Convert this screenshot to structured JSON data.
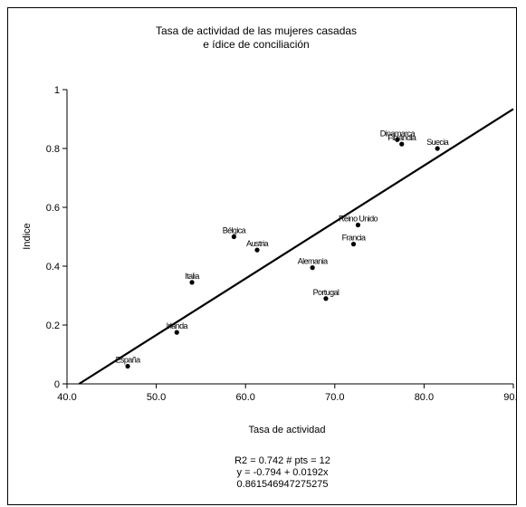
{
  "chart_data": {
    "type": "scatter",
    "title": [
      "Tasa de actividad de las mujeres casadas",
      "e ídice de conciliación"
    ],
    "xlabel": "Tasa de actividad",
    "ylabel": "Indice",
    "xlim": [
      40,
      90
    ],
    "ylim": [
      0,
      1
    ],
    "xticks": [
      40,
      50,
      60,
      70,
      80,
      90
    ],
    "xtick_labels": [
      "40.0",
      "50.0",
      "60.0",
      "70.0",
      "80.0",
      "90.0"
    ],
    "yticks": [
      0,
      0.2,
      0.4,
      0.6,
      0.8,
      1
    ],
    "ytick_labels": [
      "0",
      "0.2",
      "0.4",
      "0.6",
      "0.8",
      "1"
    ],
    "grid": false,
    "points": [
      {
        "label": "España",
        "x": 46.8,
        "y": 0.06
      },
      {
        "label": "Irlanda",
        "x": 52.3,
        "y": 0.175
      },
      {
        "label": "Italia",
        "x": 54.0,
        "y": 0.345
      },
      {
        "label": "Bélgica",
        "x": 58.7,
        "y": 0.5
      },
      {
        "label": "Austria",
        "x": 61.3,
        "y": 0.455
      },
      {
        "label": "Alemania",
        "x": 67.5,
        "y": 0.395
      },
      {
        "label": "Portugal",
        "x": 69.0,
        "y": 0.29
      },
      {
        "label": "Reino Unido",
        "x": 72.6,
        "y": 0.54
      },
      {
        "label": "Francia",
        "x": 72.1,
        "y": 0.475
      },
      {
        "label": "Dinamarca",
        "x": 77.0,
        "y": 0.83
      },
      {
        "label": "Finlandia",
        "x": 77.5,
        "y": 0.815
      },
      {
        "label": "Suecia",
        "x": 81.5,
        "y": 0.8
      }
    ],
    "regression": {
      "intercept": -0.794,
      "slope": 0.0192
    },
    "stats": [
      "R2 = 0.742   # pts = 12",
      "y = -0.794 + 0.0192x",
      "0.861546947275275"
    ]
  }
}
